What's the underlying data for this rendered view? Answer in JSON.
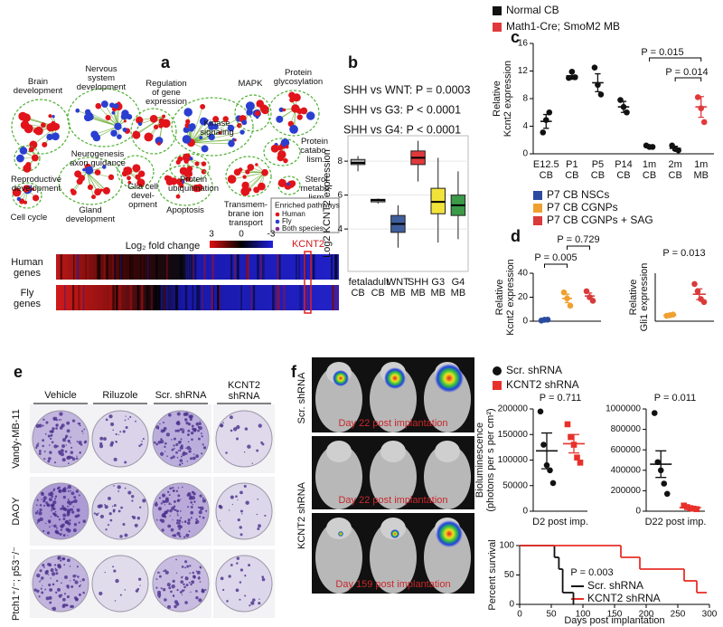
{
  "panel_labels": [
    "a",
    "b",
    "c",
    "d",
    "e",
    "f"
  ],
  "network": {
    "clusters": [
      [
        "Brain",
        "development"
      ],
      [
        "Nervous",
        "system",
        "development"
      ],
      [
        "Neurogenesis",
        "axon guidance"
      ],
      [
        "Regulation",
        "of gene",
        "expression"
      ],
      [
        "Kinase",
        "signaling"
      ],
      [
        "MAPK"
      ],
      [
        "Protein",
        "glycosylation"
      ],
      [
        "Protein",
        "ubiquitination"
      ],
      [
        "Glia cell",
        "devel-",
        "opment"
      ],
      [
        "Protein",
        "catabo-",
        "lism"
      ],
      [
        "Sterol",
        "metabo-",
        "lism"
      ],
      [
        "Reproductive",
        "development"
      ],
      [
        "Cell cycle"
      ],
      [
        "Gland",
        "development"
      ],
      [
        "Apoptosis"
      ],
      [
        "Transmem-",
        "brane ion",
        "transport"
      ]
    ],
    "legend_title": "Enriched pathways",
    "legend_items": [
      "Human",
      "Fly",
      "Both species"
    ],
    "scale_title": "Log₂ fold change",
    "scale_ticks": [
      "3",
      "0",
      "-3"
    ],
    "heatmap_rows": [
      [
        "Human",
        "genes"
      ],
      [
        "Fly",
        "genes"
      ]
    ],
    "highlight": "KCNT2"
  },
  "colonies": {
    "columns": [
      [
        "Vehicle"
      ],
      [
        "Riluzole"
      ],
      [
        "Scr. shRNA"
      ],
      [
        "KCNT2",
        "shRNA"
      ]
    ],
    "rows": [
      "Vandy-MB-11",
      "DAOY",
      "Ptch1⁺/⁻; p53⁻/⁻"
    ]
  },
  "imaging": {
    "rows": [
      "Scr. shRNA",
      "KCNT2 shRNA"
    ],
    "captions": [
      "Day 22 post implantation",
      "Day 22 post implantation",
      "Day 159 post implantation"
    ]
  },
  "chart_data": [
    {
      "type": "box",
      "annotations": [
        "SHH vs WNT: P = 0.0003",
        "SHH vs G3: P < 0.0001",
        "SHH vs G4: P < 0.0001"
      ],
      "ylabel": [
        "Log2 KCNT2 expression"
      ],
      "categories": [
        [
          "fetal",
          "CB"
        ],
        [
          "adult",
          "CB"
        ],
        [
          "WNT",
          "MB"
        ],
        [
          "SHH",
          "MB"
        ],
        [
          "G3",
          "MB"
        ],
        [
          "G4",
          "MB"
        ]
      ],
      "colors": [
        "#a9a9a9",
        "#d9d9d9",
        "#3f5e9c",
        "#e0393b",
        "#f2e33a",
        "#3c9a48"
      ],
      "boxes": [
        {
          "low": 7.4,
          "q1": 7.8,
          "median": 7.9,
          "q3": 8.1,
          "high": 8.3
        },
        {
          "low": 5.5,
          "q1": 5.6,
          "median": 5.7,
          "q3": 5.75,
          "high": 5.8
        },
        {
          "low": 2.9,
          "q1": 3.8,
          "median": 4.3,
          "q3": 4.8,
          "high": 5.4
        },
        {
          "low": 6.8,
          "q1": 7.8,
          "median": 8.2,
          "q3": 8.6,
          "high": 9.2
        },
        {
          "low": 3.2,
          "q1": 4.9,
          "median": 5.6,
          "q3": 6.4,
          "high": 8.2
        },
        {
          "low": 3.4,
          "q1": 4.8,
          "median": 5.4,
          "q3": 6.0,
          "high": 7.4
        }
      ],
      "ylim": [
        1.5,
        9.5
      ],
      "yticks": [
        4,
        6,
        8
      ],
      "grid": true
    },
    {
      "type": "dot",
      "ylabel": [
        "Relative",
        "Kcnt2 expression"
      ],
      "annotations": [
        "P = 0.015",
        "P = 0.014"
      ],
      "categories": [
        [
          "E12.5",
          "CB"
        ],
        [
          "P1",
          "CB"
        ],
        [
          "P5",
          "CB"
        ],
        [
          "P14",
          "CB"
        ],
        [
          "1m",
          "CB"
        ],
        [
          "2m",
          "CB"
        ],
        [
          "1m",
          "MB"
        ]
      ],
      "ylim": [
        0,
        16
      ],
      "yticks": [
        0,
        4,
        8,
        12,
        16
      ],
      "series": [
        {
          "name": "Normal CB",
          "color": "#111111",
          "values": [
            4.7,
            11.3,
            10.3,
            6.8,
            1.1,
            0.8,
            null
          ],
          "errors": [
            1.0,
            0.5,
            1.3,
            0.8,
            0.15,
            0.3,
            null
          ],
          "points": [
            [
              3.1,
              4.9,
              6.0
            ],
            [
              11.0,
              11.9,
              11.1
            ],
            [
              12.5,
              10.0,
              8.6
            ],
            [
              7.8,
              6.8,
              6.0
            ],
            [
              1.2,
              1.0,
              1.0
            ],
            [
              1.2,
              0.7,
              0.5
            ],
            null
          ]
        },
        {
          "name": "Math1-Cre; SmoM2 MB",
          "color": "#e0393b",
          "values": [
            null,
            null,
            null,
            null,
            null,
            null,
            6.8
          ],
          "errors": [
            null,
            null,
            null,
            null,
            null,
            null,
            1.5
          ],
          "points": [
            null,
            null,
            null,
            null,
            null,
            null,
            [
              8.2,
              6.6,
              4.6
            ]
          ]
        }
      ]
    },
    {
      "type": "dot",
      "ylabel": [
        "Relative",
        "Kcnt2 expression"
      ],
      "annotations": [
        "P = 0.005",
        "P = 0.729"
      ],
      "categories": [
        null,
        null,
        null
      ],
      "ylim": [
        0,
        40
      ],
      "yticks": [
        0,
        20,
        40
      ],
      "series": [
        {
          "name": "P7 CB NSCs",
          "color": "#2b4ba0",
          "values": [
            1.0,
            null,
            null
          ],
          "errors": [
            0.3,
            null,
            null
          ],
          "points": [
            [
              0.5,
              1.2,
              1.3
            ],
            null,
            null
          ]
        },
        {
          "name": "P7 CB CGNPs",
          "color": "#f0a030",
          "values": [
            null,
            19,
            null
          ],
          "errors": [
            null,
            3.5,
            null
          ],
          "points": [
            null,
            [
              24,
              19,
              13
            ],
            null
          ]
        },
        {
          "name": "P7 CB CGNPs + SAG",
          "color": "#d93a3a",
          "values": [
            null,
            null,
            21
          ],
          "errors": [
            null,
            null,
            2.5
          ],
          "points": [
            null,
            null,
            [
              25,
              20,
              17
            ]
          ]
        }
      ]
    },
    {
      "type": "dot",
      "ylabel": [
        "Relative",
        "Gli1 expression"
      ],
      "annotations": [
        "P = 0.013"
      ],
      "categories": [
        null,
        null
      ],
      "ylim": [
        0,
        8
      ],
      "series": [
        {
          "color": "#f0a030",
          "values": [
            1.0,
            null
          ],
          "errors": [
            0.05,
            null
          ],
          "points": [
            [
              0.9,
              1.0,
              1.1
            ],
            null
          ]
        },
        {
          "color": "#d93a3a",
          "values": [
            null,
            4.5
          ],
          "errors": [
            null,
            0.9
          ],
          "points": [
            null,
            [
              6.2,
              5.0,
              3.7,
              3.2
            ]
          ]
        }
      ]
    },
    {
      "type": "dot",
      "ylabel": [
        "Bioluminescence",
        "(photons per s per cm²)"
      ],
      "annotations": [
        "P = 0.711"
      ],
      "categories": [
        [
          "D2 post imp."
        ]
      ],
      "ylim": [
        0,
        200000
      ],
      "yticks": [
        0,
        50000,
        100000,
        150000,
        200000
      ],
      "series": [
        {
          "name": "Scr. shRNA",
          "color": "#111111",
          "values": [
            118000
          ],
          "errors": [
            35000
          ],
          "points": [
            [
              195000,
              130000,
              90000,
              80000,
              55000
            ]
          ]
        },
        {
          "name": "KCNT2 shRNA",
          "color": "#e8302a",
          "marker": "square",
          "values": [
            132000
          ],
          "errors": [
            18000
          ],
          "points": [
            [
              170000,
              145000,
              130000,
              105000,
              95000
            ]
          ]
        }
      ]
    },
    {
      "type": "dot",
      "annotations": [
        "P = 0.011"
      ],
      "categories": [
        [
          "D22 post imp."
        ]
      ],
      "ylim": [
        0,
        1000000
      ],
      "yticks": [
        0,
        200000,
        400000,
        600000,
        800000,
        1000000
      ],
      "series": [
        {
          "color": "#111111",
          "values": [
            460000
          ],
          "errors": [
            130000
          ],
          "points": [
            [
              960000,
              480000,
              400000,
              270000,
              170000
            ]
          ]
        },
        {
          "color": "#e8302a",
          "marker": "square",
          "values": [
            35000
          ],
          "errors": [
            8000
          ],
          "points": [
            [
              55000,
              40000,
              30000,
              25000,
              20000
            ]
          ]
        }
      ]
    },
    {
      "type": "step",
      "ylabel": [
        "Percent survival"
      ],
      "xlabel": "Days post implantation",
      "annotations": [
        "P = 0.003"
      ],
      "ylim": [
        0,
        100
      ],
      "yticks": [
        0,
        50,
        100
      ],
      "xlim": [
        0,
        300
      ],
      "xticks": [
        0,
        50,
        100,
        150,
        200,
        250,
        300
      ],
      "series": [
        {
          "name": "Scr. shRNA",
          "color": "#111111",
          "x": [
            0,
            55,
            62,
            68,
            85
          ],
          "values": [
            100,
            80,
            60,
            20,
            0
          ]
        },
        {
          "name": "KCNT2 shRNA",
          "color": "#e8302a",
          "x": [
            0,
            160,
            190,
            260,
            280,
            295
          ],
          "values": [
            100,
            80,
            60,
            40,
            20,
            20
          ]
        }
      ]
    }
  ]
}
